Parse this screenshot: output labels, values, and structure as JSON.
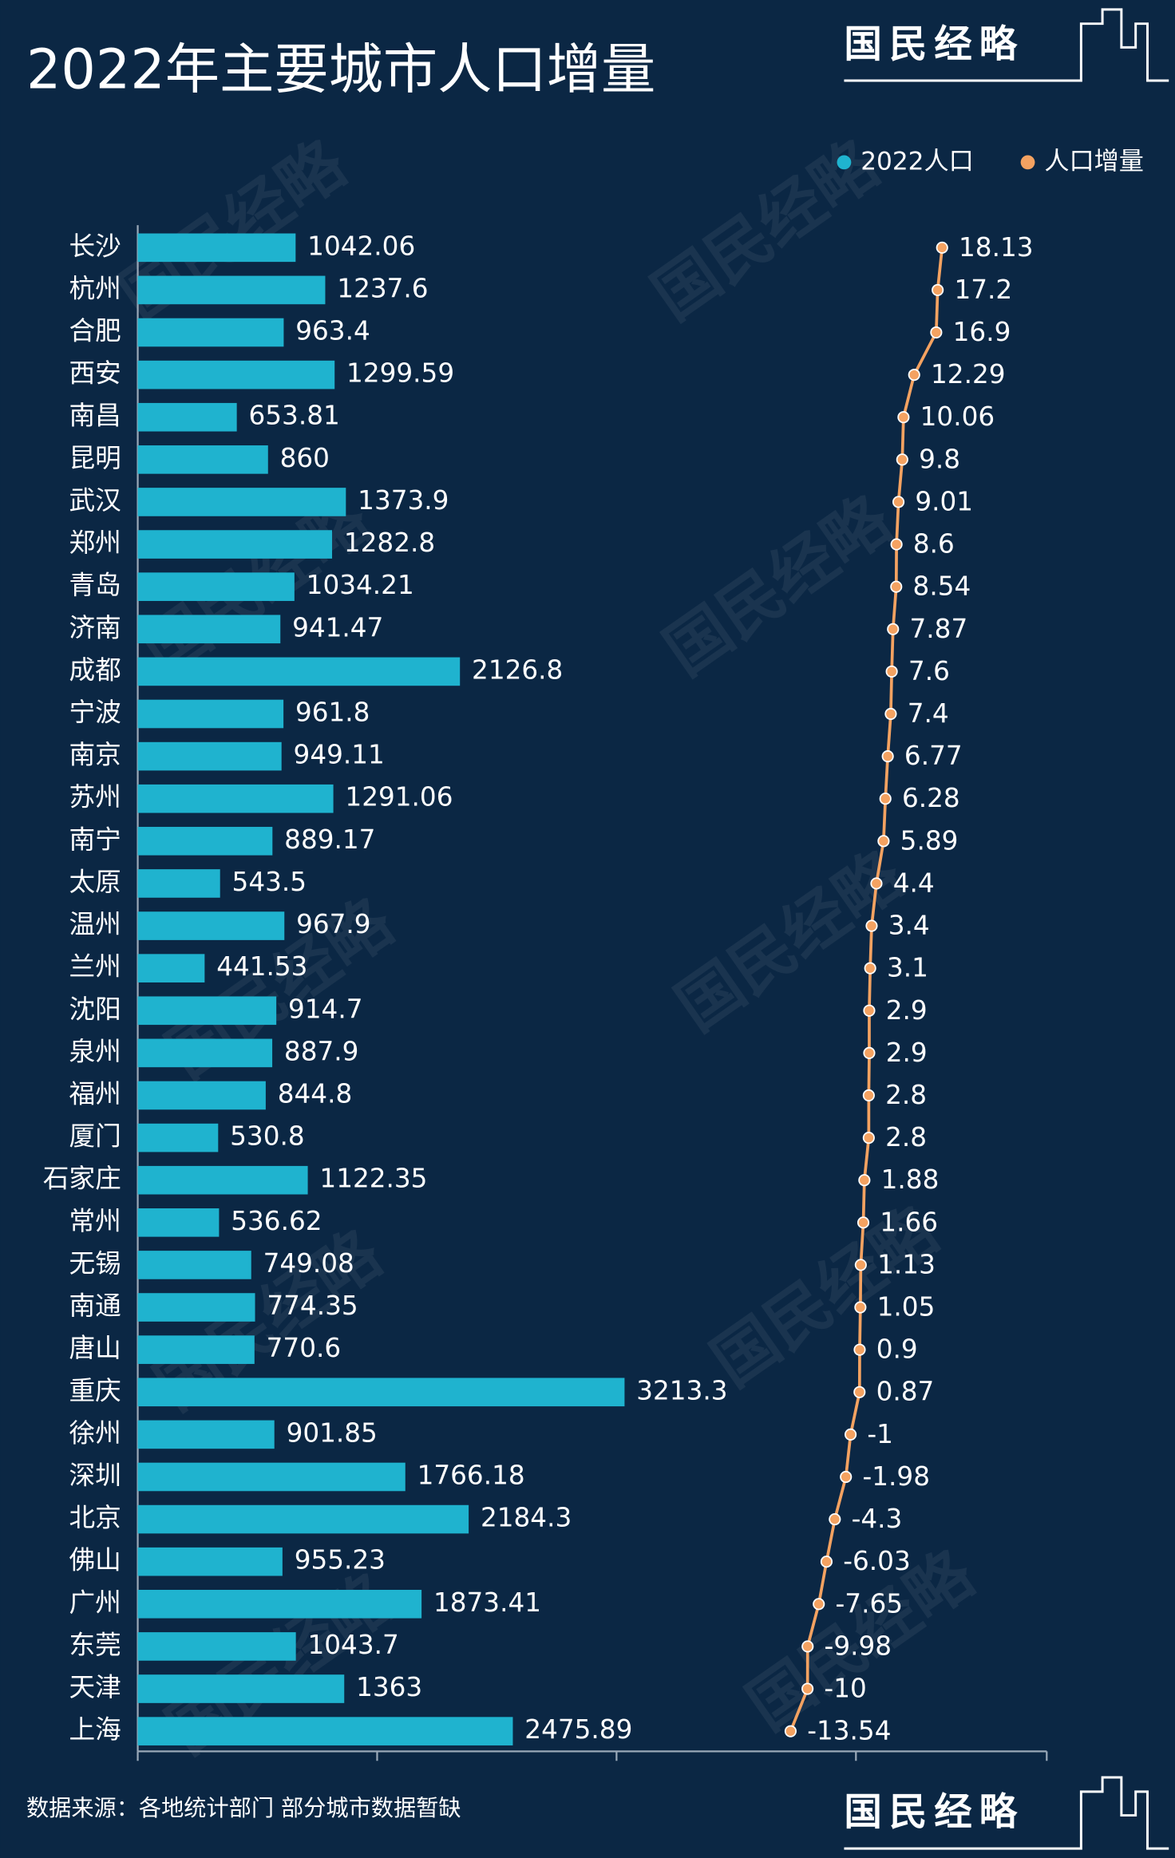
{
  "chart_data": {
    "type": "bar-line",
    "title": "2022年主要城市人口增量",
    "logo": "国民经略",
    "source": "数据来源：各地统计部门 部分城市数据暂缺",
    "legend": "top-right",
    "categories": [
      "长沙",
      "杭州",
      "合肥",
      "西安",
      "南昌",
      "昆明",
      "武汉",
      "郑州",
      "青岛",
      "济南",
      "成都",
      "宁波",
      "南京",
      "苏州",
      "南宁",
      "太原",
      "温州",
      "兰州",
      "沈阳",
      "泉州",
      "福州",
      "厦门",
      "石家庄",
      "常州",
      "无锡",
      "南通",
      "唐山",
      "重庆",
      "徐州",
      "深圳",
      "北京",
      "佛山",
      "广州",
      "东莞",
      "天津",
      "上海"
    ],
    "xlim": [
      0,
      6000
    ],
    "x2lim": [
      -150,
      40
    ],
    "series": [
      {
        "name": "2022人口",
        "color": "#1fb3cf",
        "values": [
          1042.06,
          1237.6,
          963.4,
          1299.59,
          653.81,
          860,
          1373.9,
          1282.8,
          1034.21,
          941.47,
          2126.8,
          961.8,
          949.11,
          1291.06,
          889.17,
          543.5,
          967.9,
          441.53,
          914.7,
          887.9,
          844.8,
          530.8,
          1122.35,
          536.62,
          749.08,
          774.35,
          770.6,
          3213.3,
          901.85,
          1766.18,
          2184.3,
          955.23,
          1873.41,
          1043.7,
          1363,
          2475.89
        ]
      },
      {
        "name": "人口增量",
        "color": "#f4a261",
        "axis": "x2",
        "values": [
          18.13,
          17.2,
          16.9,
          12.29,
          10.06,
          9.8,
          9.01,
          8.6,
          8.54,
          7.87,
          7.6,
          7.4,
          6.77,
          6.28,
          5.89,
          4.4,
          3.4,
          3.1,
          2.9,
          2.9,
          2.8,
          2.8,
          1.88,
          1.66,
          1.13,
          1.05,
          0.9,
          0.87,
          -1,
          -1.98,
          -4.3,
          -6.03,
          -7.65,
          -9.98,
          -10,
          -13.54
        ]
      }
    ]
  }
}
